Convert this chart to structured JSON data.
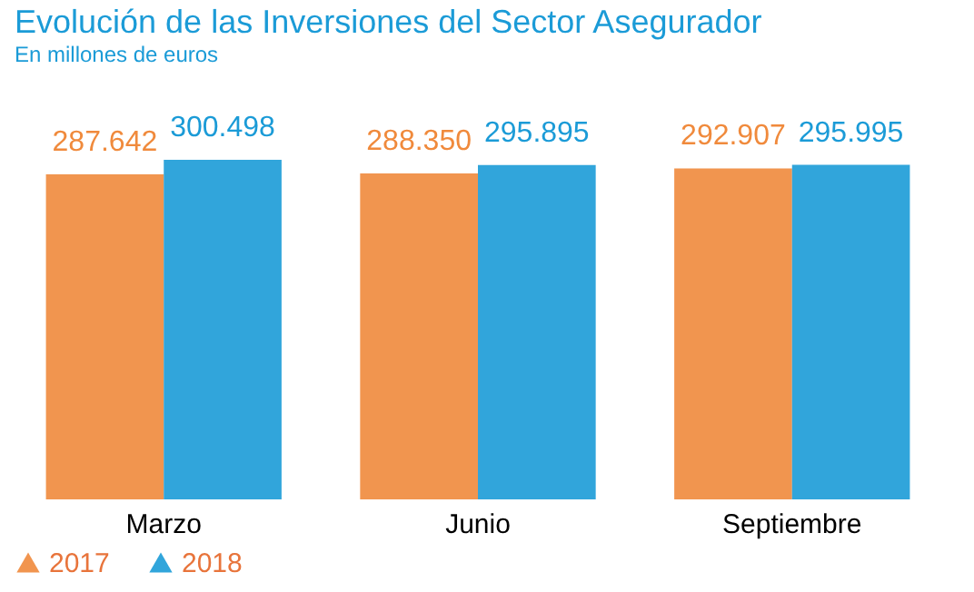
{
  "chart_data": {
    "type": "bar",
    "title": "Evolución de las Inversiones del Sector Asegurador",
    "subtitle": "En millones de euros",
    "categories": [
      "Marzo",
      "Junio",
      "Septiembre"
    ],
    "series": [
      {
        "name": "2017",
        "color": "#f08a3c",
        "values": [
          287642,
          288350,
          292907
        ],
        "value_labels": [
          "287.642",
          "288.350",
          "292.907"
        ]
      },
      {
        "name": "2018",
        "color": "#1b9bd7",
        "values": [
          300498,
          295895,
          295995
        ],
        "value_labels": [
          "300.498",
          "295.895",
          "295.995"
        ]
      }
    ],
    "legend": "bottom",
    "grid": false
  }
}
